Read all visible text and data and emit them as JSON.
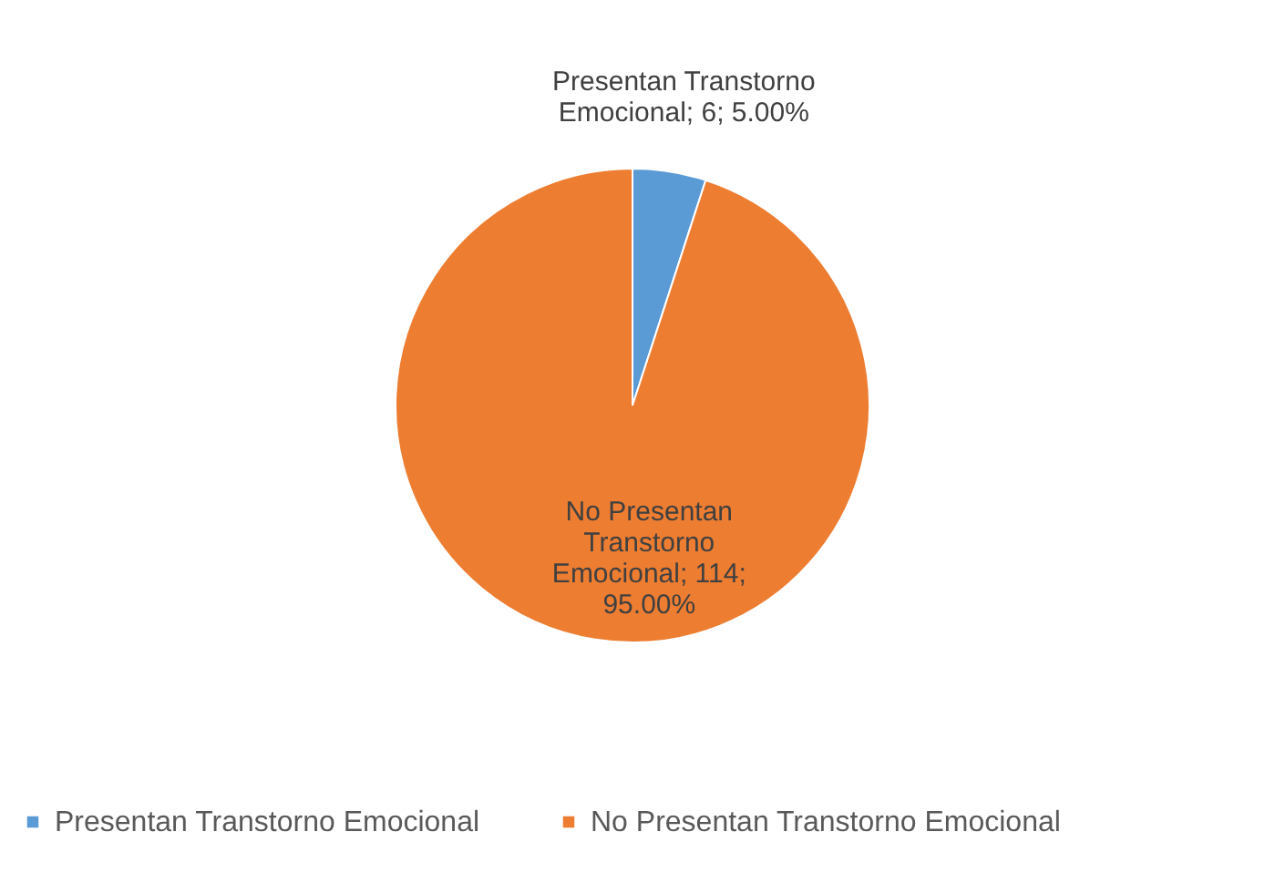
{
  "chart_data": {
    "type": "pie",
    "categories": [
      "Presentan Transtorno Emocional",
      "No Presentan Transtorno Emocional"
    ],
    "values": [
      6,
      114
    ],
    "colors": [
      "#5b9bd5",
      "#ed7d31"
    ],
    "value_labels": [
      "Presentan Transtorno Emocional; 6; 5.00%",
      "No Presentan Transtorno Emocional; 114; 95.00%"
    ],
    "legend": "bottom"
  }
}
